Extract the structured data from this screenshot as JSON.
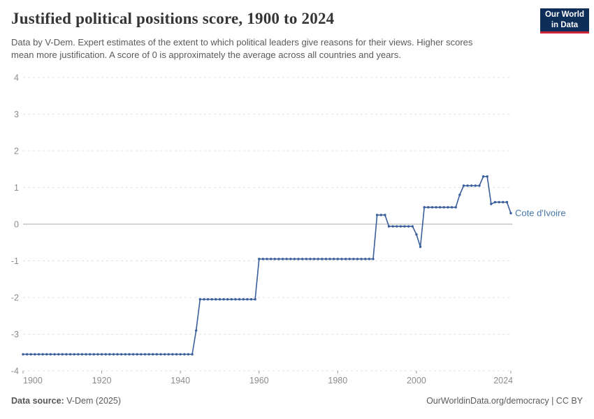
{
  "header": {
    "title": "Justified political positions score, 1900 to 2024",
    "subtitle": "Data by V-Dem. Expert estimates of the extent to which political leaders give reasons for their views. Higher scores mean more justification. A score of 0 is approximately the average across all countries and years.",
    "logo": {
      "line1": "Our World",
      "line2": "in Data",
      "bg_color": "#0f2d59",
      "accent_color": "#cf2437"
    }
  },
  "chart_data": {
    "type": "line",
    "title": "Justified political positions score, 1900 to 2024",
    "xlabel": "",
    "ylabel": "",
    "xlim": [
      1900,
      2024
    ],
    "ylim": [
      -4,
      4
    ],
    "x_ticks": [
      1900,
      1920,
      1940,
      1960,
      1980,
      2000,
      2024
    ],
    "y_ticks": [
      4,
      3,
      2,
      1,
      0,
      -1,
      -2,
      -3,
      -4
    ],
    "grid": "horizontal-dashed, solid zero line, markers on every yearly point",
    "legend_position": "end-of-line label",
    "colors": {
      "grid": "#e0e0e0",
      "zero_line": "#a8a8a8",
      "axis_text": "#8c8c8c"
    },
    "series": [
      {
        "name": "Cote d'Ivoire",
        "color": "#3a5e9c",
        "label_color": "#4776a8",
        "years": [
          1900,
          1901,
          1902,
          1903,
          1904,
          1905,
          1906,
          1907,
          1908,
          1909,
          1910,
          1911,
          1912,
          1913,
          1914,
          1915,
          1916,
          1917,
          1918,
          1919,
          1920,
          1921,
          1922,
          1923,
          1924,
          1925,
          1926,
          1927,
          1928,
          1929,
          1930,
          1931,
          1932,
          1933,
          1934,
          1935,
          1936,
          1937,
          1938,
          1939,
          1940,
          1941,
          1942,
          1943,
          1944,
          1945,
          1946,
          1947,
          1948,
          1949,
          1950,
          1951,
          1952,
          1953,
          1954,
          1955,
          1956,
          1957,
          1958,
          1959,
          1960,
          1961,
          1962,
          1963,
          1964,
          1965,
          1966,
          1967,
          1968,
          1969,
          1970,
          1971,
          1972,
          1973,
          1974,
          1975,
          1976,
          1977,
          1978,
          1979,
          1980,
          1981,
          1982,
          1983,
          1984,
          1985,
          1986,
          1987,
          1988,
          1989,
          1990,
          1991,
          1992,
          1993,
          1994,
          1995,
          1996,
          1997,
          1998,
          1999,
          2000,
          2001,
          2002,
          2003,
          2004,
          2005,
          2006,
          2007,
          2008,
          2009,
          2010,
          2011,
          2012,
          2013,
          2014,
          2015,
          2016,
          2017,
          2018,
          2019,
          2020,
          2021,
          2022,
          2023,
          2024
        ],
        "values": [
          -3.55,
          -3.55,
          -3.55,
          -3.55,
          -3.55,
          -3.55,
          -3.55,
          -3.55,
          -3.55,
          -3.55,
          -3.55,
          -3.55,
          -3.55,
          -3.55,
          -3.55,
          -3.55,
          -3.55,
          -3.55,
          -3.55,
          -3.55,
          -3.55,
          -3.55,
          -3.55,
          -3.55,
          -3.55,
          -3.55,
          -3.55,
          -3.55,
          -3.55,
          -3.55,
          -3.55,
          -3.55,
          -3.55,
          -3.55,
          -3.55,
          -3.55,
          -3.55,
          -3.55,
          -3.55,
          -3.55,
          -3.55,
          -3.55,
          -3.55,
          -3.55,
          -2.9,
          -2.05,
          -2.05,
          -2.05,
          -2.05,
          -2.05,
          -2.05,
          -2.05,
          -2.05,
          -2.05,
          -2.05,
          -2.05,
          -2.05,
          -2.05,
          -2.05,
          -2.05,
          -0.95,
          -0.95,
          -0.95,
          -0.95,
          -0.95,
          -0.95,
          -0.95,
          -0.95,
          -0.95,
          -0.95,
          -0.95,
          -0.95,
          -0.95,
          -0.95,
          -0.95,
          -0.95,
          -0.95,
          -0.95,
          -0.95,
          -0.95,
          -0.95,
          -0.95,
          -0.95,
          -0.95,
          -0.95,
          -0.95,
          -0.95,
          -0.95,
          -0.95,
          -0.95,
          0.25,
          0.25,
          0.25,
          -0.06,
          -0.06,
          -0.06,
          -0.06,
          -0.06,
          -0.06,
          -0.06,
          -0.28,
          -0.62,
          0.46,
          0.46,
          0.46,
          0.46,
          0.46,
          0.46,
          0.46,
          0.46,
          0.46,
          0.8,
          1.05,
          1.05,
          1.05,
          1.05,
          1.05,
          1.3,
          1.3,
          0.55,
          0.6,
          0.6,
          0.6,
          0.6,
          0.3
        ]
      }
    ]
  },
  "footer": {
    "source_label": "Data source:",
    "source_value": " V-Dem (2025)",
    "credit": "OurWorldinData.org/democracy | CC BY"
  }
}
